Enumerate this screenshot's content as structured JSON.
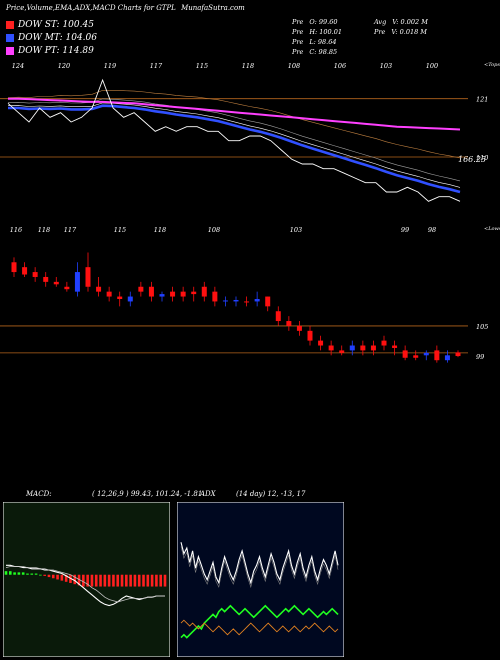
{
  "header": {
    "title": "Price,Volume,EMA,ADX,MACD Charts for GTPL",
    "site": "MunafaSutra.com"
  },
  "legend": [
    {
      "label": "DOW ST: 100.45",
      "color": "#ff2020"
    },
    {
      "label": "DOW MT: 104.06",
      "color": "#3050ff"
    },
    {
      "label": "DOW PT: 114.89",
      "color": "#ff40ff"
    }
  ],
  "ohlc": {
    "open": {
      "label": "Pre",
      "value": "O: 99.60"
    },
    "high": {
      "label": "Pre",
      "value": "H: 100.01"
    },
    "low": {
      "label": "Pre",
      "value": "L: 98.64"
    },
    "close": {
      "label": "Pre",
      "value": "C: 98.85"
    },
    "avg_vol": {
      "label": "Avg",
      "value": "V: 0.002 M"
    },
    "pre_vol": {
      "label": "Pre",
      "value": "V: 0.018 M"
    }
  },
  "panel_labels": {
    "top_right": "<Tops",
    "mid_right": "<Lows",
    "price_last": "166.25"
  },
  "colors": {
    "up": "#2040ff",
    "down": "#ff1010",
    "ema_short": "#ff40ff",
    "ema_mid": "#3050ff",
    "grid_orange": "#b5651d",
    "macd_line": "#ffffff",
    "hist_red": "#ff2020",
    "hist_green": "#20ff20",
    "adx_green": "#20ff20",
    "adx_orange": "#e08020",
    "macd_bg": "#0a1a0a",
    "adx_bg": "#000820"
  },
  "chart_data": [
    {
      "type": "line",
      "name": "EMA panel",
      "top_tick_labels": [
        "124",
        "120",
        "119",
        "117",
        "115",
        "118",
        "108",
        "106",
        "103",
        "100"
      ],
      "right_axis_labels": [
        "121",
        "110"
      ],
      "close_line": [
        120,
        118,
        116,
        119,
        117,
        118,
        116,
        117,
        119,
        125,
        119,
        117,
        118,
        116,
        114,
        115,
        114,
        115,
        115,
        114,
        114,
        112,
        112,
        113,
        113,
        112,
        110,
        108,
        107,
        107,
        106,
        106,
        105,
        104,
        103,
        103,
        101,
        101,
        102,
        101,
        99,
        100,
        100,
        99
      ],
      "ema_pink": [
        121,
        121,
        120.9,
        120.8,
        120.7,
        120.6,
        120.5,
        120.4,
        120.3,
        120.3,
        120.2,
        120.1,
        120,
        119.8,
        119.6,
        119.4,
        119.2,
        119,
        118.8,
        118.6,
        118.4,
        118.2,
        118,
        117.8,
        117.6,
        117.4,
        117.2,
        117,
        116.8,
        116.6,
        116.4,
        116.2,
        116,
        115.8,
        115.6,
        115.4,
        115.2,
        115,
        114.9,
        114.8,
        114.7,
        114.6,
        114.5,
        114.4
      ],
      "ema_blue": [
        119,
        119,
        118.8,
        118.9,
        118.8,
        118.9,
        118.7,
        118.7,
        118.8,
        119.5,
        119.4,
        119.2,
        119,
        118.7,
        118.3,
        118,
        117.6,
        117.3,
        117,
        116.6,
        116.2,
        115.6,
        115,
        114.4,
        113.9,
        113.3,
        112.6,
        111.8,
        111,
        110.3,
        109.6,
        108.9,
        108.2,
        107.5,
        106.8,
        106.1,
        105.3,
        104.6,
        104,
        103.4,
        102.7,
        102.1,
        101.6,
        101
      ]
    },
    {
      "type": "candlestick",
      "name": "Price panel",
      "top_tick_labels": [
        "116",
        "118",
        "117",
        "115",
        "118",
        "108",
        "103",
        "99",
        "98"
      ],
      "right_axis_labels": [
        "105",
        "99"
      ],
      "candles": [
        {
          "o": 118,
          "c": 116,
          "h": 119,
          "l": 115
        },
        {
          "o": 117,
          "c": 115.5,
          "h": 118,
          "l": 115
        },
        {
          "o": 116,
          "c": 115,
          "h": 117,
          "l": 114
        },
        {
          "o": 115,
          "c": 114,
          "h": 116,
          "l": 113
        },
        {
          "o": 114,
          "c": 113.5,
          "h": 115,
          "l": 113
        },
        {
          "o": 113,
          "c": 112.5,
          "h": 114,
          "l": 112
        },
        {
          "o": 112,
          "c": 116,
          "h": 118,
          "l": 111
        },
        {
          "o": 117,
          "c": 113,
          "h": 120,
          "l": 112
        },
        {
          "o": 113,
          "c": 112,
          "h": 115,
          "l": 111
        },
        {
          "o": 112,
          "c": 111,
          "h": 113,
          "l": 110
        },
        {
          "o": 111,
          "c": 110.5,
          "h": 112,
          "l": 109
        },
        {
          "o": 110,
          "c": 111,
          "h": 112,
          "l": 109
        },
        {
          "o": 113,
          "c": 112,
          "h": 114,
          "l": 111
        },
        {
          "o": 113,
          "c": 111,
          "h": 114,
          "l": 110
        },
        {
          "o": 111,
          "c": 111.5,
          "h": 112,
          "l": 110
        },
        {
          "o": 112,
          "c": 111,
          "h": 113,
          "l": 110
        },
        {
          "o": 112,
          "c": 111,
          "h": 113,
          "l": 110
        },
        {
          "o": 112,
          "c": 111.5,
          "h": 113,
          "l": 110
        },
        {
          "o": 113,
          "c": 111,
          "h": 114,
          "l": 110
        },
        {
          "o": 112,
          "c": 110,
          "h": 113,
          "l": 109
        },
        {
          "o": 110,
          "c": 110.2,
          "h": 111,
          "l": 109
        },
        {
          "o": 110,
          "c": 110.3,
          "h": 111,
          "l": 109
        },
        {
          "o": 110,
          "c": 109.8,
          "h": 111,
          "l": 109
        },
        {
          "o": 110,
          "c": 110.5,
          "h": 112,
          "l": 109
        },
        {
          "o": 111,
          "c": 109,
          "h": 111,
          "l": 108
        },
        {
          "o": 108,
          "c": 106,
          "h": 109,
          "l": 105
        },
        {
          "o": 106,
          "c": 105,
          "h": 107,
          "l": 104
        },
        {
          "o": 105,
          "c": 104,
          "h": 106,
          "l": 103
        },
        {
          "o": 104,
          "c": 102,
          "h": 105,
          "l": 101
        },
        {
          "o": 102,
          "c": 101,
          "h": 103,
          "l": 100
        },
        {
          "o": 101,
          "c": 100,
          "h": 102,
          "l": 99
        },
        {
          "o": 100,
          "c": 99.5,
          "h": 101,
          "l": 99
        },
        {
          "o": 100,
          "c": 101,
          "h": 102,
          "l": 99
        },
        {
          "o": 101,
          "c": 100,
          "h": 102,
          "l": 99
        },
        {
          "o": 101,
          "c": 100,
          "h": 102,
          "l": 99
        },
        {
          "o": 102,
          "c": 101,
          "h": 103,
          "l": 100
        },
        {
          "o": 101,
          "c": 100.5,
          "h": 102,
          "l": 99
        },
        {
          "o": 100,
          "c": 98.5,
          "h": 101,
          "l": 98
        },
        {
          "o": 99,
          "c": 98.5,
          "h": 100,
          "l": 98
        },
        {
          "o": 99,
          "c": 99.5,
          "h": 100,
          "l": 98
        },
        {
          "o": 100,
          "c": 98,
          "h": 101,
          "l": 97.5
        },
        {
          "o": 98,
          "c": 99,
          "h": 100,
          "l": 97.5
        },
        {
          "o": 99.6,
          "c": 98.85,
          "h": 100.01,
          "l": 98.64
        }
      ]
    },
    {
      "type": "line",
      "name": "MACD",
      "title": "MACD:",
      "params": "( 12,26,9 ) 99.43, 101.24, -1.81",
      "macd": [
        0.8,
        0.8,
        0.7,
        0.7,
        0.6,
        0.6,
        0.5,
        0.5,
        0.5,
        0.4,
        0.4,
        0.3,
        0.2,
        0.1,
        -0.1,
        -0.3,
        -0.5,
        -0.8,
        -1.1,
        -1.4,
        -1.7,
        -2.0,
        -2.3,
        -2.5,
        -2.6,
        -2.5,
        -2.3,
        -2.0,
        -1.8,
        -1.9,
        -2.0,
        -2.1,
        -2.0,
        -1.9,
        -1.9,
        -1.8,
        -1.8,
        -1.8
      ],
      "signal": [
        0.6,
        0.7,
        0.7,
        0.7,
        0.7,
        0.6,
        0.6,
        0.6,
        0.5,
        0.5,
        0.4,
        0.4,
        0.3,
        0.2,
        0.1,
        0.0,
        -0.2,
        -0.4,
        -0.6,
        -0.8,
        -1.1,
        -1.3,
        -1.6,
        -1.9,
        -2.1,
        -2.2,
        -2.3,
        -2.2,
        -2.1,
        -2.0,
        -2.0,
        -2.0,
        -2.0,
        -1.9,
        -1.9,
        -1.8,
        -1.8,
        -1.8
      ],
      "histogram": [
        0.3,
        0.3,
        0.2,
        0.2,
        0.2,
        0.1,
        0.1,
        0.1,
        0.0,
        -0.1,
        -0.2,
        -0.3,
        -0.4,
        -0.5,
        -0.6,
        -0.7,
        -0.8,
        -0.9,
        -1.0,
        -1.0,
        -1.0,
        -1.0,
        -1.0,
        -1.0,
        -1.0,
        -1.0,
        -1.0,
        -1.0,
        -1.0,
        -1.0,
        -1.0,
        -1.0,
        -1.0,
        -1.0,
        -1.0,
        -1.0,
        -1.0,
        -1.0
      ]
    },
    {
      "type": "line",
      "name": "ADX",
      "title": "ADX",
      "params": "(14 day) 12, -13, 17",
      "adx": [
        38,
        34,
        36,
        31,
        35,
        29,
        33,
        30,
        27,
        25,
        28,
        31,
        26,
        24,
        29,
        33,
        30,
        27,
        25,
        28,
        32,
        35,
        31,
        27,
        24,
        28,
        30,
        33,
        29,
        26,
        30,
        34,
        31,
        27,
        25,
        29,
        32,
        35,
        30,
        27,
        31,
        34,
        29,
        26,
        30,
        33,
        28,
        25,
        29,
        32,
        30,
        27,
        31,
        35,
        30
      ],
      "plus_di": [
        10,
        11,
        10,
        9,
        10,
        9,
        8,
        9,
        10,
        9,
        8,
        7,
        8,
        9,
        8,
        7,
        6,
        7,
        8,
        7,
        6,
        7,
        8,
        9,
        10,
        9,
        8,
        7,
        8,
        9,
        10,
        9,
        8,
        7,
        8,
        9,
        8,
        7,
        8,
        9,
        8,
        7,
        8,
        9,
        8,
        9,
        10,
        9,
        8,
        7,
        8,
        9,
        8,
        7,
        8
      ],
      "minus_di": [
        5,
        6,
        5,
        6,
        7,
        8,
        9,
        8,
        10,
        11,
        12,
        13,
        12,
        14,
        15,
        14,
        15,
        16,
        15,
        14,
        13,
        14,
        15,
        14,
        13,
        12,
        13,
        14,
        15,
        16,
        15,
        14,
        13,
        12,
        13,
        14,
        15,
        14,
        15,
        16,
        15,
        14,
        13,
        14,
        15,
        14,
        13,
        12,
        13,
        14,
        13,
        14,
        15,
        14,
        13
      ]
    }
  ]
}
